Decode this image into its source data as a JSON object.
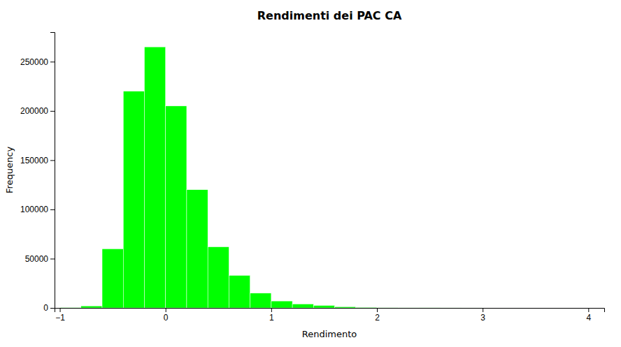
{
  "chart_data": {
    "type": "histogram",
    "title": "Rendimenti dei PAC CA",
    "xlabel": "Rendimento",
    "ylabel": "Frequency",
    "bins": [
      -1.0,
      -0.8,
      -0.6,
      -0.4,
      -0.2,
      0.0,
      0.2,
      0.4,
      0.6,
      0.8,
      1.0,
      1.2,
      1.4,
      1.6,
      1.8,
      2.0,
      2.2,
      2.4,
      2.6,
      2.8,
      3.0,
      3.2,
      3.4,
      3.6,
      3.8,
      4.0
    ],
    "values": [
      500,
      2000,
      60000,
      220000,
      265000,
      205000,
      120000,
      62000,
      33000,
      15000,
      7000,
      4000,
      2500,
      1200,
      600,
      300,
      200,
      100,
      50,
      20,
      10,
      5,
      2,
      1,
      1
    ],
    "color": "#00FF00",
    "xlim": [
      -1.05,
      4.15
    ],
    "ylim": [
      0,
      280000
    ],
    "xticks": [
      -1,
      0,
      1,
      2,
      3,
      4
    ],
    "yticks": [
      0,
      50000,
      100000,
      150000,
      200000,
      250000
    ],
    "grid": false
  }
}
